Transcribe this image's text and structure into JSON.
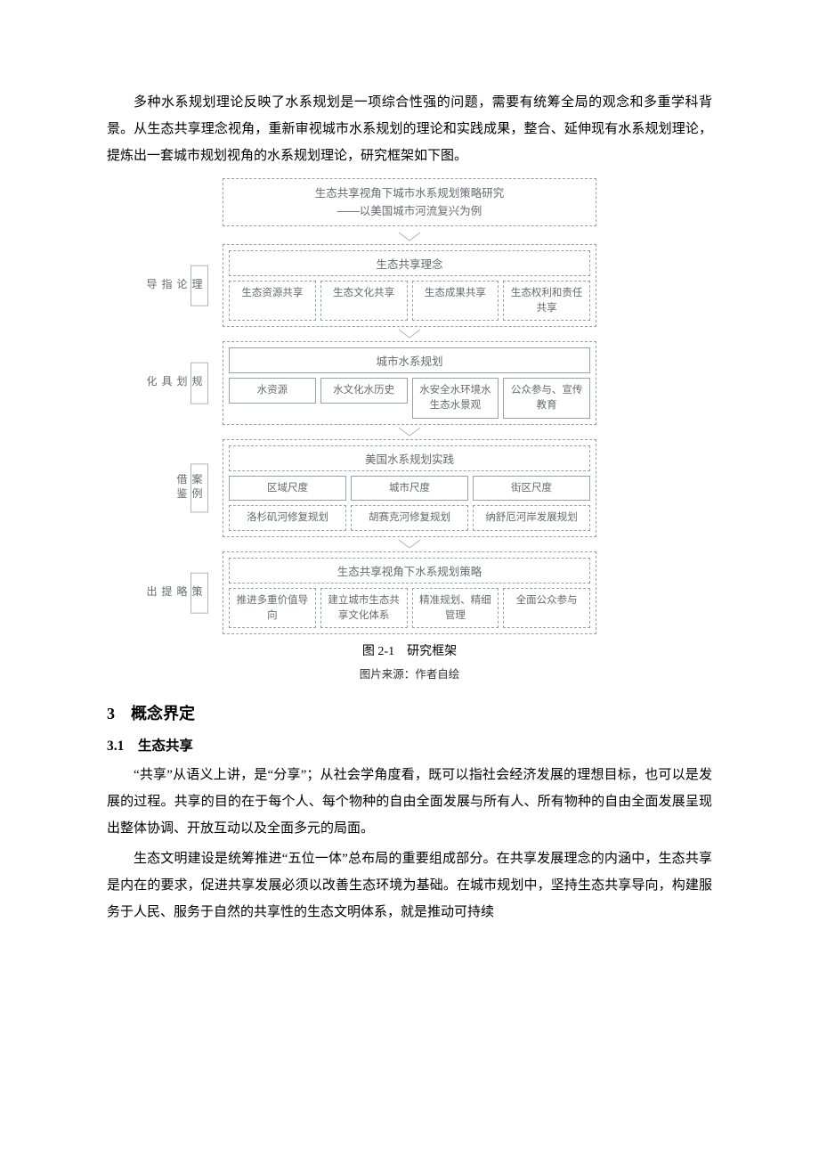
{
  "intro_para": "多种水系规划理论反映了水系规划是一项综合性强的问题，需要有统筹全局的观念和多重学科背景。从生态共享理念视角，重新审视城市水系规划的理论和实践成果，整合、延伸现有水系规划理论，提炼出一套城市规划视角的水系规划理论，研究框架如下图。",
  "diagram": {
    "title_line1": "生态共享视角下城市水系规划策略研究",
    "title_line2": "——以美国城市河流复兴为例",
    "sections": [
      {
        "side": "理论指导",
        "header": "生态共享理念",
        "rows": [
          [
            "生态资源共享",
            "生态文化共享",
            "生态成果共享",
            "生态权利和责任共享"
          ]
        ],
        "header_solid": false,
        "cell_solid": false
      },
      {
        "side": "规划具化",
        "header": "城市水系规划",
        "rows": [
          [
            "水资源",
            "水文化\n水历史",
            "水安全\n水环境\n水生态\n水景观",
            "公众参与、宣传教育"
          ]
        ],
        "header_solid": true,
        "cell_solid": true
      },
      {
        "side": "案例借鉴",
        "header": "美国水系规划实践",
        "rows": [
          [
            "区域尺度",
            "城市尺度",
            "街区尺度"
          ],
          [
            "洛杉矶河修复规划",
            "胡赛克河修复规划",
            "纳舒厄河岸发展规划"
          ]
        ],
        "header_solid": false,
        "cell_solid": false
      },
      {
        "side": "策略提出",
        "header": "生态共享视角下水系规划策略",
        "rows": [
          [
            "推进多重价值导向",
            "建立城市生态共享文化体系",
            "精准规划、精细管理",
            "全面公众参与"
          ]
        ],
        "header_solid": false,
        "cell_solid": false
      }
    ]
  },
  "fig_caption": "图 2-1　研究框架",
  "fig_source": "图片来源：作者自绘",
  "heading3": "3　概念界定",
  "heading31": "3.1　生态共享",
  "para31a": "“共享”从语义上讲，是“分享”；从社会学角度看，既可以指社会经济发展的理想目标，也可以是发展的过程。共享的目的在于每个人、每个物种的自由全面发展与所有人、所有物种的自由全面发展呈现出整体协调、开放互动以及全面多元的局面。",
  "para31b": "生态文明建设是统筹推进“五位一体”总布局的重要组成部分。在共享发展理念的内涵中，生态共享是内在的要求，促进共享发展必须以改善生态环境为基础。在城市规划中，坚持生态共享导向，构建服务于人民、服务于自然的共享性的生态文明体系，就是推动可持续"
}
